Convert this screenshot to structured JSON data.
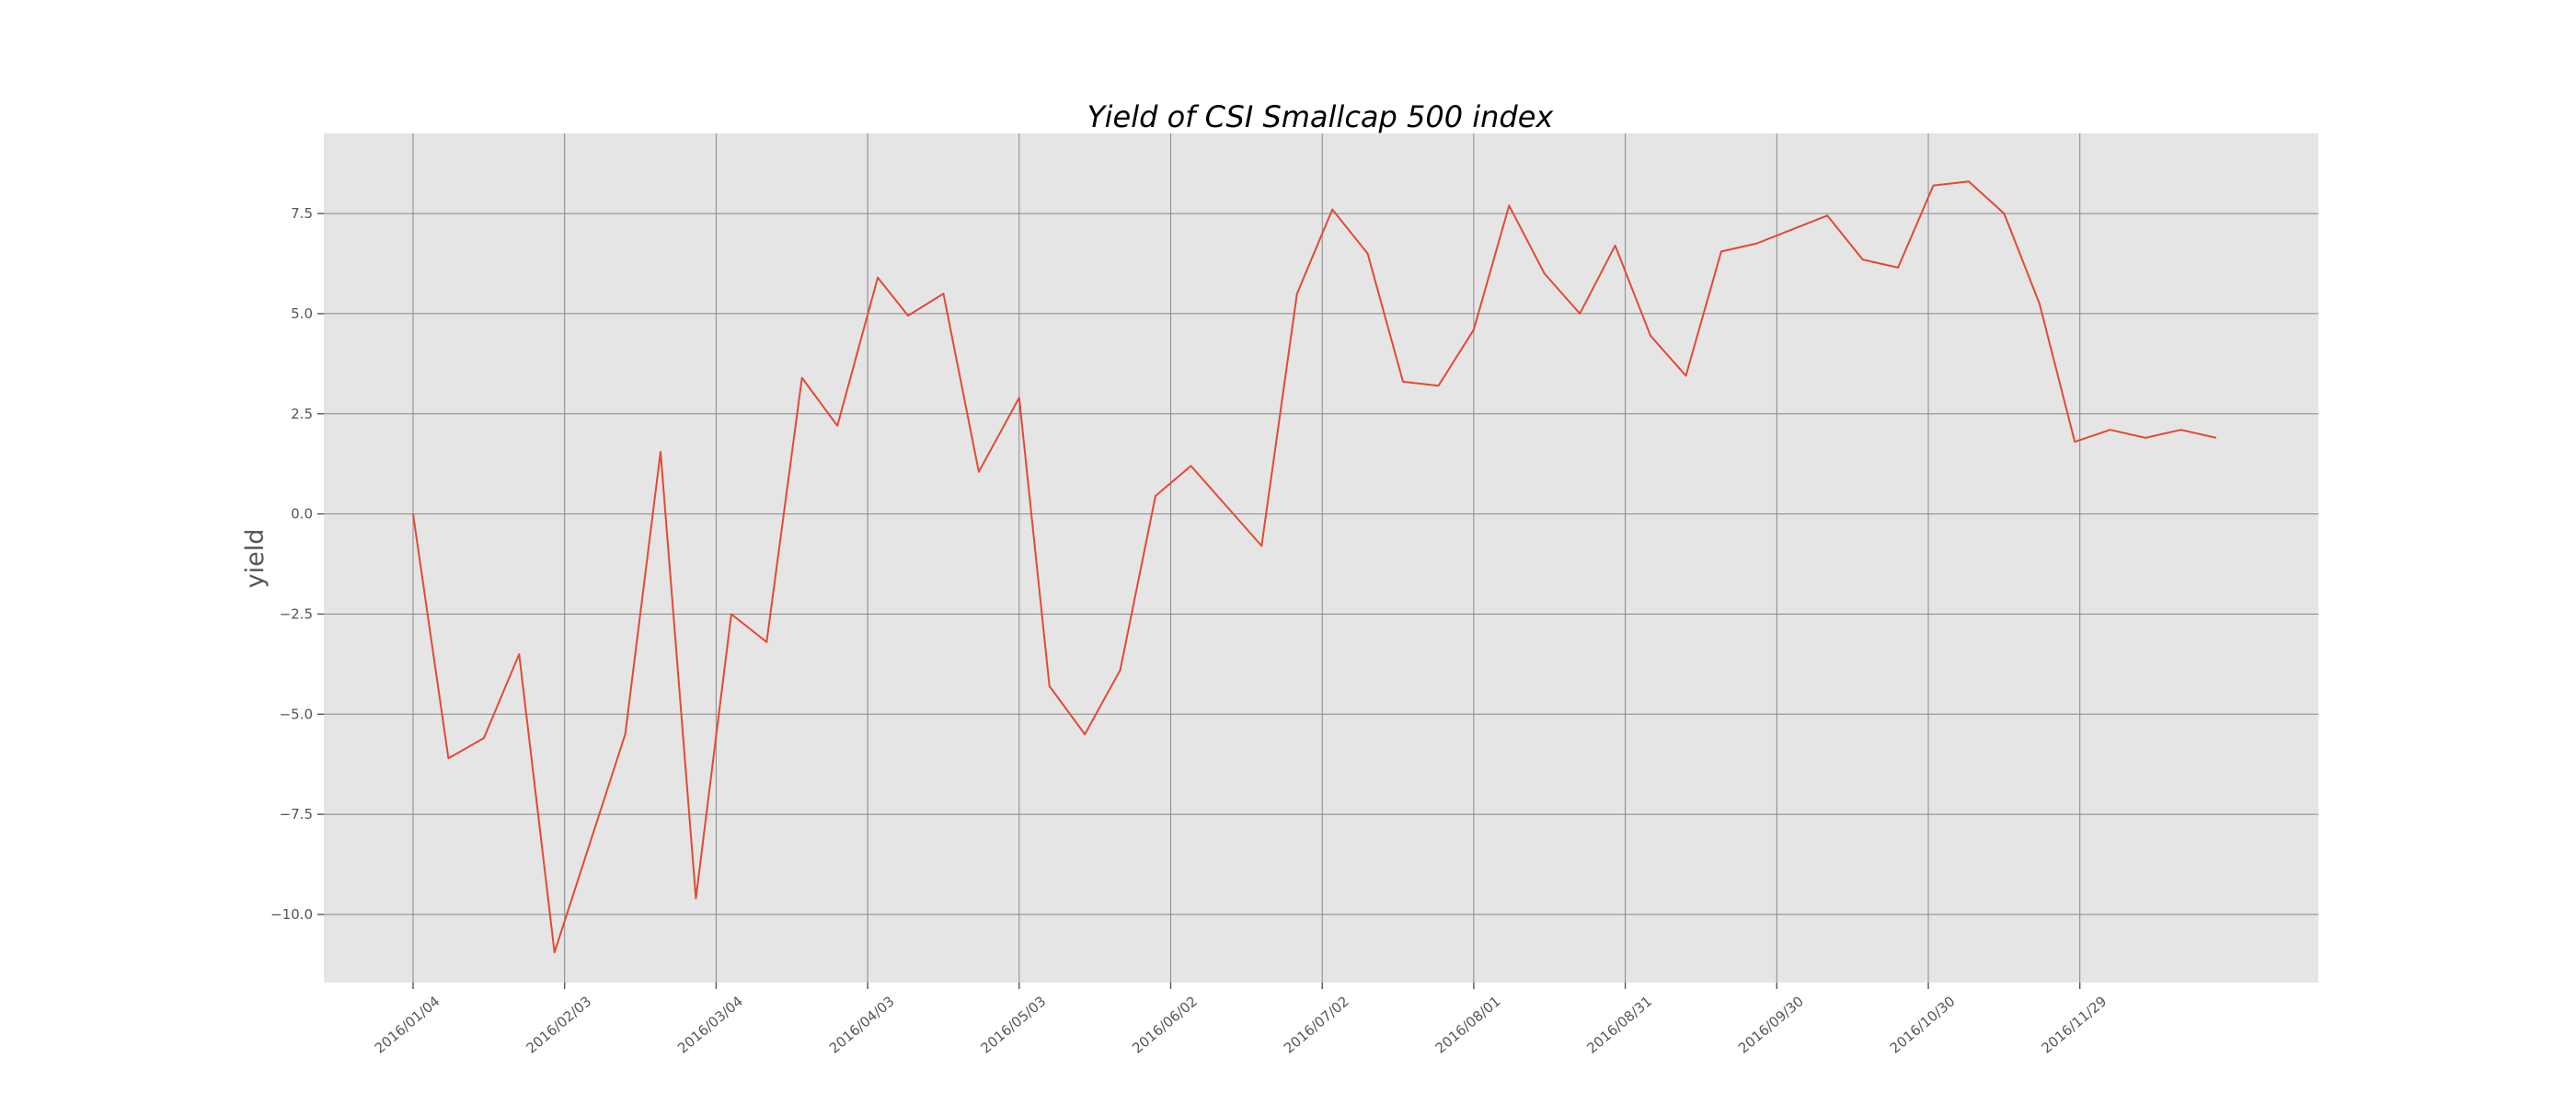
{
  "chart_data": {
    "type": "line",
    "title": "Yield of CSI Smallcap 500 index",
    "xlabel": "",
    "ylabel": "yield",
    "ylim": [
      -11.7,
      9.5
    ],
    "yticks": [
      -10.0,
      -7.5,
      -5.0,
      -2.5,
      0.0,
      2.5,
      5.0,
      7.5
    ],
    "ytick_labels": [
      "−10.0",
      "−7.5",
      "−5.0",
      "−2.5",
      "0.0",
      "2.5",
      "5.0",
      "7.5"
    ],
    "xticks": [
      "2016/01/04",
      "2016/02/03",
      "2016/03/04",
      "2016/04/03",
      "2016/05/03",
      "2016/06/02",
      "2016/07/02",
      "2016/08/01",
      "2016/08/31",
      "2016/09/30",
      "2016/10/30",
      "2016/11/29"
    ],
    "grid": true,
    "series": [
      {
        "color": "#E24A33",
        "x": [
          "2016/01/04",
          "2016/01/11",
          "2016/01/18",
          "2016/01/25",
          "2016/02/01",
          "2016/02/15",
          "2016/02/22",
          "2016/02/29",
          "2016/03/07",
          "2016/03/14",
          "2016/03/21",
          "2016/03/28",
          "2016/04/05",
          "2016/04/11",
          "2016/04/18",
          "2016/04/25",
          "2016/05/03",
          "2016/05/09",
          "2016/05/16",
          "2016/05/23",
          "2016/05/30",
          "2016/06/06",
          "2016/06/13",
          "2016/06/20",
          "2016/06/27",
          "2016/07/04",
          "2016/07/11",
          "2016/07/18",
          "2016/07/25",
          "2016/08/01",
          "2016/08/08",
          "2016/08/15",
          "2016/08/22",
          "2016/08/29",
          "2016/09/05",
          "2016/09/12",
          "2016/09/19",
          "2016/09/26",
          "2016/10/10",
          "2016/10/17",
          "2016/10/24",
          "2016/10/31",
          "2016/11/07",
          "2016/11/14",
          "2016/11/21",
          "2016/11/28",
          "2016/12/05",
          "2016/12/12",
          "2016/12/19",
          "2016/12/26"
        ],
        "y": [
          0.0,
          -6.1,
          -5.6,
          -3.5,
          -10.95,
          -5.5,
          1.55,
          -9.6,
          -2.5,
          -3.2,
          3.4,
          2.2,
          5.9,
          4.95,
          5.5,
          1.05,
          2.9,
          -4.3,
          -5.5,
          -3.9,
          0.45,
          1.2,
          0.2,
          -0.8,
          5.5,
          7.6,
          6.5,
          3.3,
          3.2,
          4.6,
          7.7,
          6.0,
          5.0,
          6.7,
          4.45,
          3.45,
          6.55,
          6.75,
          7.45,
          6.35,
          6.15,
          8.2,
          8.3,
          7.5,
          5.25,
          1.8,
          2.1,
          1.9,
          2.1,
          1.9
        ]
      }
    ]
  }
}
